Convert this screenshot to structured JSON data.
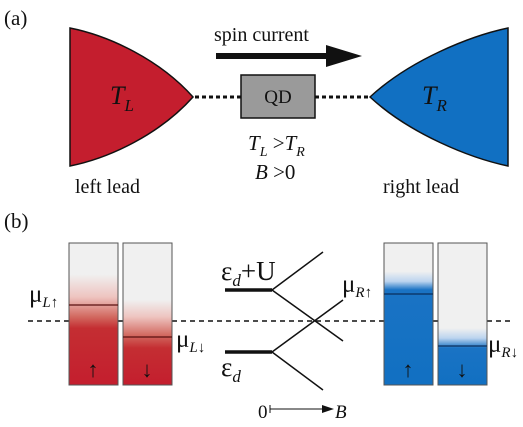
{
  "panel_a": {
    "label": "(a)",
    "arrow_label": "spin current",
    "dot_label": "QD",
    "left_T": "T",
    "left_T_sub": "L",
    "right_T": "T",
    "right_T_sub": "R",
    "left_lead_label": "left lead",
    "right_lead_label": "right lead",
    "cond_T1": "T",
    "cond_T1_sub": "L",
    "cond_gt": " >",
    "cond_T2": "T",
    "cond_T2_sub": "R",
    "cond_B": "B",
    "cond_B_rest": " >0",
    "colors": {
      "left_lead": "#c41e2e",
      "right_lead": "#1170c2",
      "dot": "#9a9a9a"
    }
  },
  "panel_b": {
    "label": "(b)",
    "mu_L_up": "μ",
    "mu_L_up_sub": "L↑",
    "mu_L_down": "μ",
    "mu_L_down_sub": "L↓",
    "mu_R_up": "μ",
    "mu_R_up_sub": "R↑",
    "mu_R_down": "μ",
    "mu_R_down_sub": "R↓",
    "level_upper": "ε",
    "level_upper_sub": "d",
    "level_upper_rest": "+U",
    "level_lower": "ε",
    "level_lower_sub": "d",
    "axis_zero": "0",
    "axis_B": "B",
    "up_arrow": "↑",
    "down_arrow": "↓"
  }
}
